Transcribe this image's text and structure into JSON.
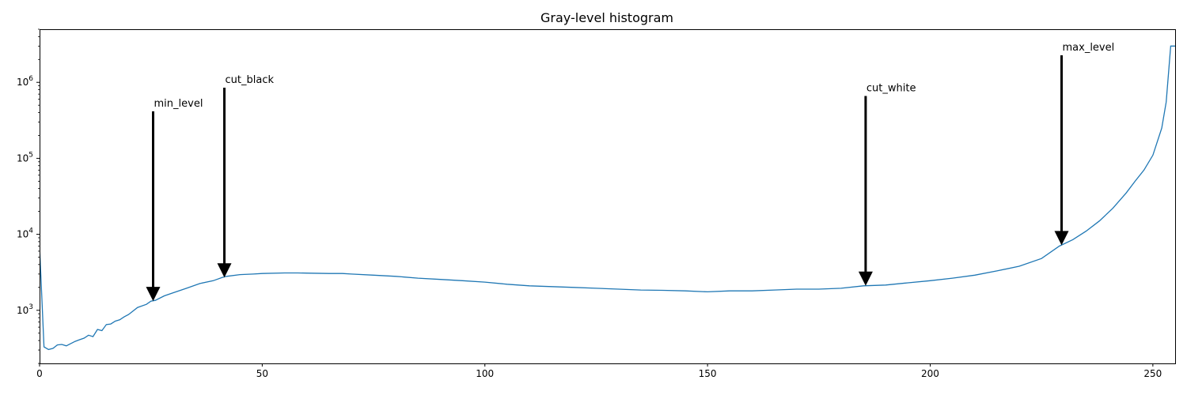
{
  "chart_data": {
    "type": "line",
    "title": "Gray-level histogram",
    "xlabel": "",
    "ylabel": "",
    "xlim": [
      0,
      255
    ],
    "ylim": [
      200,
      5000000
    ],
    "yscale": "log",
    "grid": false,
    "legend": "none",
    "x_ticks": [
      0,
      50,
      100,
      150,
      200,
      250
    ],
    "y_ticks": [
      {
        "value": 1000,
        "base": "10",
        "exp": "3"
      },
      {
        "value": 10000,
        "base": "10",
        "exp": "4"
      },
      {
        "value": 100000,
        "base": "10",
        "exp": "5"
      },
      {
        "value": 1000000,
        "base": "10",
        "exp": "6"
      }
    ],
    "series": [
      {
        "color": "#1f77b4",
        "x": [
          0,
          1,
          2,
          3,
          4,
          5,
          6,
          7,
          8,
          9,
          10,
          11,
          12,
          13,
          14,
          15,
          16,
          17,
          18,
          19,
          20,
          22,
          24,
          25,
          26,
          28,
          30,
          33,
          36,
          39,
          41,
          42,
          45,
          48,
          50,
          55,
          58,
          61,
          65,
          68,
          70,
          75,
          80,
          85,
          90,
          95,
          100,
          105,
          110,
          115,
          120,
          125,
          130,
          135,
          140,
          145,
          150,
          155,
          160,
          165,
          170,
          175,
          180,
          185,
          190,
          195,
          200,
          205,
          210,
          215,
          220,
          225,
          229,
          232,
          235,
          238,
          241,
          244,
          246,
          248,
          250,
          252,
          253,
          254,
          255
        ],
        "y": [
          7000,
          330,
          305,
          315,
          350,
          355,
          340,
          365,
          390,
          410,
          430,
          470,
          450,
          560,
          540,
          650,
          660,
          720,
          750,
          820,
          880,
          1090,
          1200,
          1320,
          1350,
          1550,
          1700,
          1950,
          2250,
          2450,
          2700,
          2800,
          2950,
          3000,
          3050,
          3100,
          3100,
          3080,
          3050,
          3050,
          3000,
          2900,
          2800,
          2650,
          2550,
          2450,
          2350,
          2200,
          2100,
          2050,
          2000,
          1950,
          1900,
          1850,
          1830,
          1800,
          1750,
          1800,
          1800,
          1850,
          1900,
          1900,
          1950,
          2100,
          2150,
          2300,
          2450,
          2650,
          2900,
          3300,
          3800,
          4800,
          7000,
          8500,
          11000,
          15000,
          22000,
          35000,
          50000,
          70000,
          110000,
          250000,
          550000,
          3000000,
          3000000
        ]
      }
    ],
    "annotations": [
      {
        "text": "min_level",
        "x": 25.5,
        "y": 1320
      },
      {
        "text": "cut_black",
        "x": 41.5,
        "y": 2700
      },
      {
        "text": "cut_white",
        "x": 185.5,
        "y": 2100
      },
      {
        "text": "max_level",
        "x": 229.5,
        "y": 7200
      }
    ]
  }
}
